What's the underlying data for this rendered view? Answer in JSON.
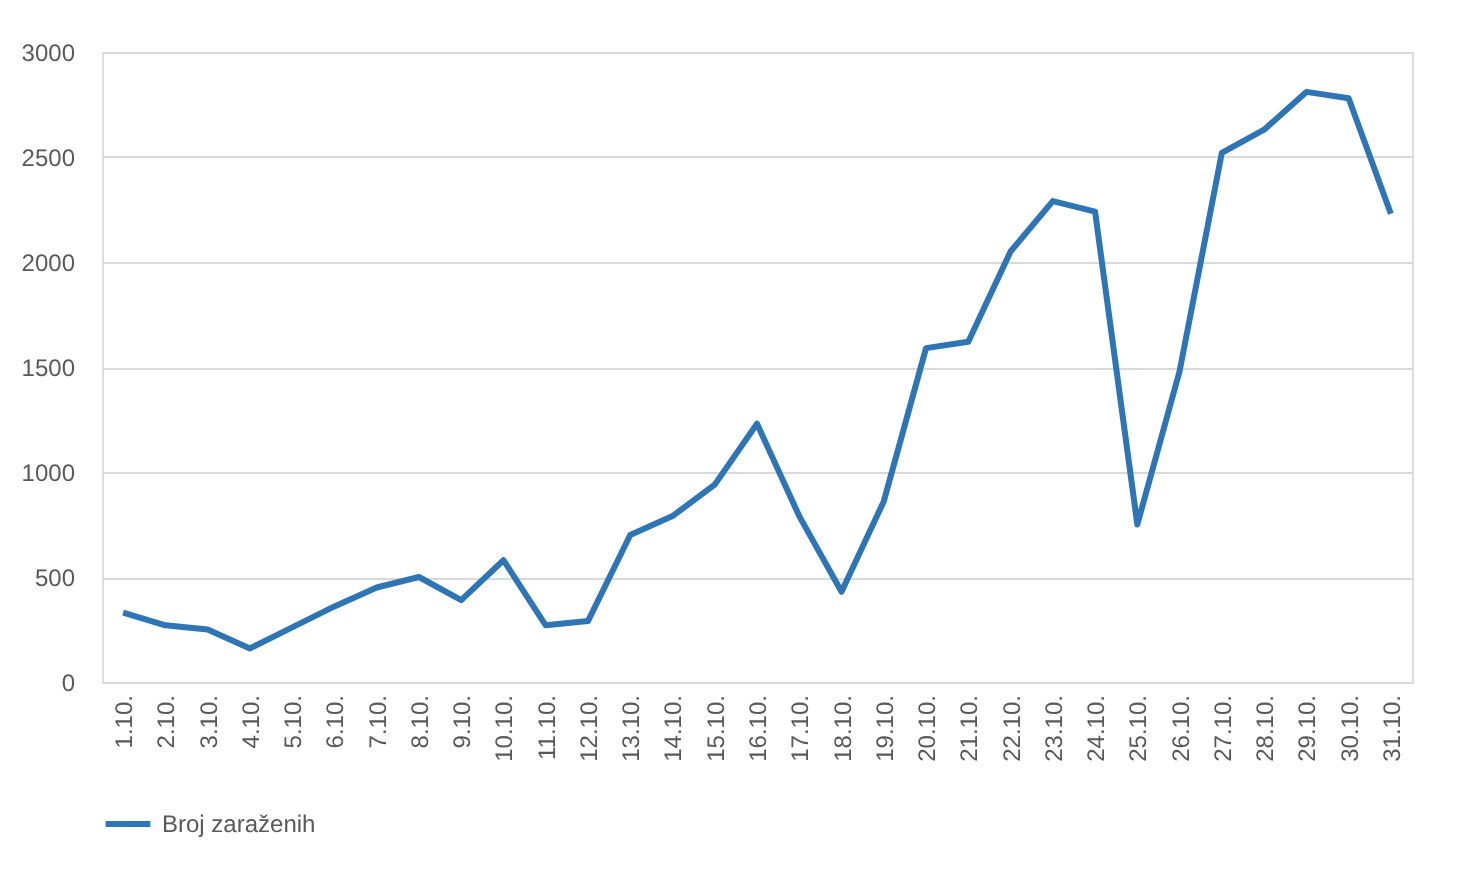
{
  "chart_data": {
    "type": "line",
    "categories": [
      "1.10.",
      "2.10.",
      "3.10.",
      "4.10.",
      "5.10.",
      "6.10.",
      "7.10.",
      "8.10.",
      "9.10.",
      "10.10.",
      "11.10.",
      "12.10.",
      "13.10.",
      "14.10.",
      "15.10.",
      "16.10.",
      "17.10.",
      "18.10.",
      "19.10.",
      "20.10.",
      "21.10.",
      "22.10.",
      "23.10.",
      "24.10.",
      "25.10.",
      "26.10.",
      "27.10.",
      "28.10.",
      "29.10.",
      "30.10.",
      "31.10."
    ],
    "series": [
      {
        "name": "Broj zaraženih",
        "color": "#2e75b6",
        "values": [
          330,
          270,
          250,
          160,
          260,
          360,
          450,
          500,
          390,
          580,
          270,
          290,
          700,
          790,
          940,
          1230,
          790,
          430,
          860,
          1590,
          1620,
          2050,
          2290,
          2240,
          750,
          1480,
          2520,
          2630,
          2810,
          2780,
          2230
        ]
      }
    ],
    "ylim": [
      0,
      3000
    ],
    "yticks": [
      0,
      500,
      1000,
      1500,
      2000,
      2500,
      3000
    ],
    "grid": "y",
    "legend": "bottom",
    "marker": "none",
    "line_style": "solid"
  }
}
